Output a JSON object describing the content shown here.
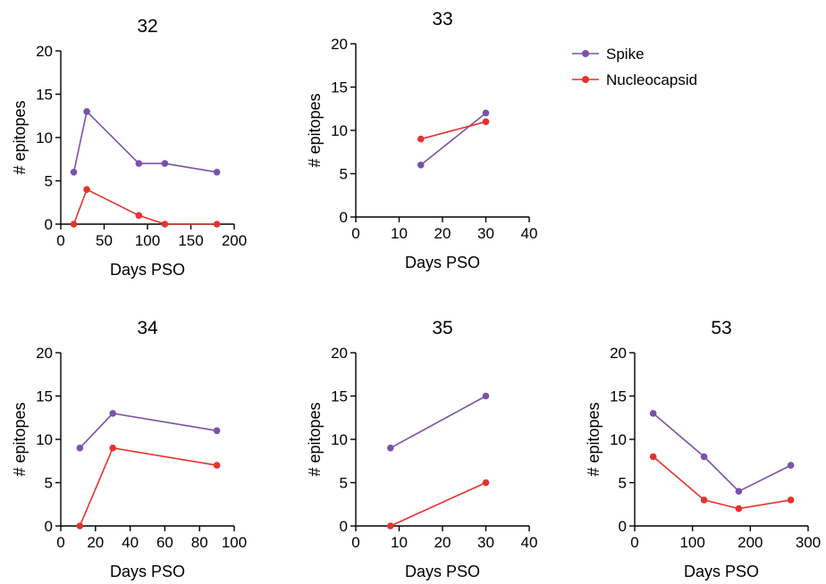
{
  "series_style": {
    "spike_color": "#7B52AB",
    "nucleocapsid_color": "#E8312D"
  },
  "legend": [
    {
      "label": "Spike",
      "color": "#7B52AB"
    },
    {
      "label": "Nucleocapsid",
      "color": "#E8312D"
    }
  ],
  "chart_data": [
    {
      "type": "line",
      "title": "32",
      "xlabel": "Days PSO",
      "ylabel": "# epitopes",
      "xlim": [
        0,
        200
      ],
      "ylim": [
        0,
        20
      ],
      "xticks": [
        0,
        50,
        100,
        150,
        200
      ],
      "yticks": [
        0,
        5,
        10,
        15,
        20
      ],
      "series": [
        {
          "name": "Spike",
          "x": [
            15,
            30,
            90,
            120,
            180
          ],
          "y": [
            6,
            13,
            7,
            7,
            6
          ]
        },
        {
          "name": "Nucleocapsid",
          "x": [
            15,
            30,
            90,
            120,
            180
          ],
          "y": [
            0,
            4,
            1,
            0,
            0
          ]
        }
      ]
    },
    {
      "type": "line",
      "title": "33",
      "xlabel": "Days PSO",
      "ylabel": "# epitopes",
      "xlim": [
        0,
        40
      ],
      "ylim": [
        0,
        20
      ],
      "xticks": [
        0,
        10,
        20,
        30,
        40
      ],
      "yticks": [
        0,
        5,
        10,
        15,
        20
      ],
      "series": [
        {
          "name": "Spike",
          "x": [
            15,
            30
          ],
          "y": [
            6,
            12
          ]
        },
        {
          "name": "Nucleocapsid",
          "x": [
            15,
            30
          ],
          "y": [
            9,
            11
          ]
        }
      ]
    },
    {
      "type": "line",
      "title": "34",
      "xlabel": "Days PSO",
      "ylabel": "# epitopes",
      "xlim": [
        0,
        100
      ],
      "ylim": [
        0,
        20
      ],
      "xticks": [
        0,
        20,
        40,
        60,
        80,
        100
      ],
      "yticks": [
        0,
        5,
        10,
        15,
        20
      ],
      "series": [
        {
          "name": "Spike",
          "x": [
            11,
            30,
            90
          ],
          "y": [
            9,
            13,
            11
          ]
        },
        {
          "name": "Nucleocapsid",
          "x": [
            11,
            30,
            90
          ],
          "y": [
            0,
            9,
            7
          ]
        }
      ]
    },
    {
      "type": "line",
      "title": "35",
      "xlabel": "Days PSO",
      "ylabel": "# epitopes",
      "xlim": [
        0,
        40
      ],
      "ylim": [
        0,
        20
      ],
      "xticks": [
        0,
        10,
        20,
        30,
        40
      ],
      "yticks": [
        0,
        5,
        10,
        15,
        20
      ],
      "series": [
        {
          "name": "Spike",
          "x": [
            8,
            30
          ],
          "y": [
            9,
            15
          ]
        },
        {
          "name": "Nucleocapsid",
          "x": [
            8,
            30
          ],
          "y": [
            0,
            5
          ]
        }
      ]
    },
    {
      "type": "line",
      "title": "53",
      "xlabel": "Days PSO",
      "ylabel": "# epitopes",
      "xlim": [
        0,
        300
      ],
      "ylim": [
        0,
        20
      ],
      "xticks": [
        0,
        100,
        200,
        300
      ],
      "yticks": [
        0,
        5,
        10,
        15,
        20
      ],
      "series": [
        {
          "name": "Spike",
          "x": [
            32,
            120,
            180,
            270
          ],
          "y": [
            13,
            8,
            4,
            7
          ]
        },
        {
          "name": "Nucleocapsid",
          "x": [
            32,
            120,
            180,
            270
          ],
          "y": [
            8,
            3,
            2,
            3
          ]
        }
      ]
    }
  ]
}
